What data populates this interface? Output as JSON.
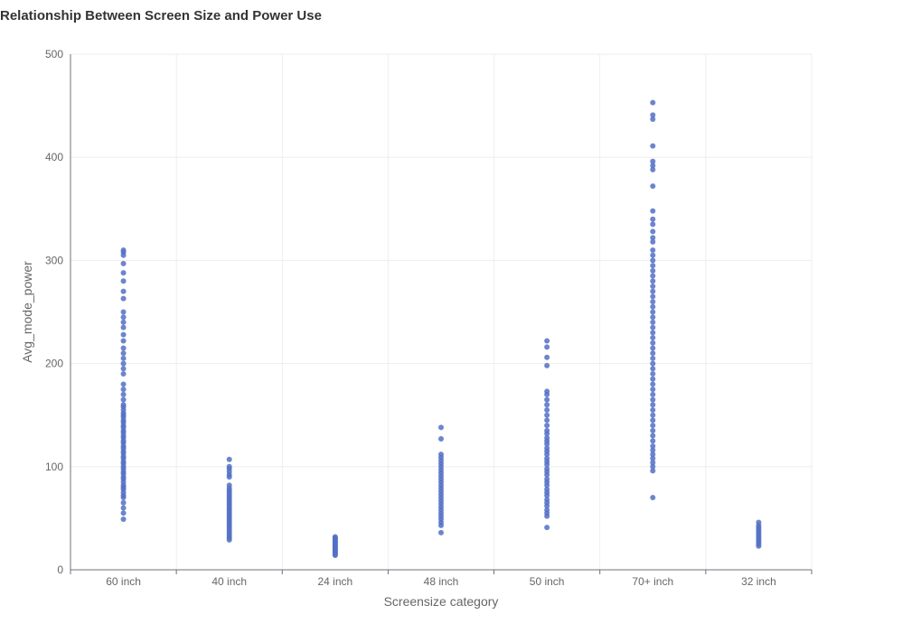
{
  "chart_data": {
    "type": "scatter",
    "title": "Relationship Between Screen Size and Power Use",
    "xlabel": "Screensize category",
    "ylabel": "Avg_mode_power",
    "ylim": [
      0,
      500
    ],
    "yticks": [
      0,
      100,
      200,
      300,
      400,
      500
    ],
    "grid": true,
    "point_color": "#5470c6",
    "categories": [
      "60 inch",
      "40 inch",
      "24 inch",
      "48 inch",
      "50 inch",
      "70+ inch",
      "32 inch"
    ],
    "series": [
      {
        "values": [
          [
            49,
            55,
            60,
            65,
            70,
            72,
            75,
            78,
            80,
            82,
            85,
            88,
            90,
            93,
            95,
            98,
            100,
            103,
            105,
            108,
            110,
            113,
            115,
            118,
            120,
            123,
            125,
            128,
            130,
            133,
            135,
            138,
            140,
            143,
            145,
            148,
            150,
            152,
            155,
            158,
            160,
            165,
            170,
            175,
            180,
            190,
            195,
            200,
            205,
            210,
            215,
            222,
            228,
            235,
            240,
            245,
            250,
            263,
            270,
            280,
            288,
            297,
            305,
            308,
            310
          ],
          [
            29,
            31,
            33,
            35,
            37,
            39,
            41,
            43,
            45,
            47,
            49,
            51,
            53,
            55,
            57,
            59,
            61,
            63,
            65,
            67,
            69,
            71,
            73,
            75,
            77,
            79,
            82,
            90,
            92,
            95,
            98,
            100,
            107
          ],
          [
            14,
            15,
            16,
            17,
            18,
            19,
            20,
            21,
            22,
            23,
            24,
            25,
            26,
            27,
            28,
            29,
            30,
            31,
            32
          ],
          [
            36,
            43,
            46,
            49,
            52,
            55,
            58,
            61,
            64,
            67,
            70,
            73,
            76,
            79,
            82,
            85,
            88,
            91,
            94,
            97,
            100,
            103,
            106,
            109,
            112,
            127,
            138
          ],
          [
            41,
            52,
            55,
            58,
            62,
            65,
            68,
            72,
            75,
            78,
            82,
            85,
            88,
            92,
            95,
            98,
            102,
            105,
            108,
            112,
            115,
            118,
            122,
            125,
            128,
            132,
            135,
            140,
            145,
            150,
            155,
            160,
            165,
            170,
            173,
            198,
            206,
            216,
            222
          ],
          [
            70,
            96,
            100,
            104,
            108,
            112,
            116,
            120,
            125,
            130,
            135,
            140,
            145,
            150,
            155,
            160,
            165,
            170,
            175,
            180,
            185,
            190,
            195,
            200,
            205,
            210,
            215,
            220,
            225,
            230,
            235,
            240,
            245,
            250,
            255,
            260,
            265,
            270,
            275,
            280,
            285,
            290,
            295,
            300,
            305,
            310,
            318,
            322,
            328,
            335,
            340,
            348,
            372,
            388,
            392,
            396,
            411,
            437,
            441,
            453
          ],
          [
            23,
            25,
            27,
            29,
            31,
            33,
            35,
            37,
            39,
            41,
            43,
            46
          ]
        ]
      }
    ]
  }
}
